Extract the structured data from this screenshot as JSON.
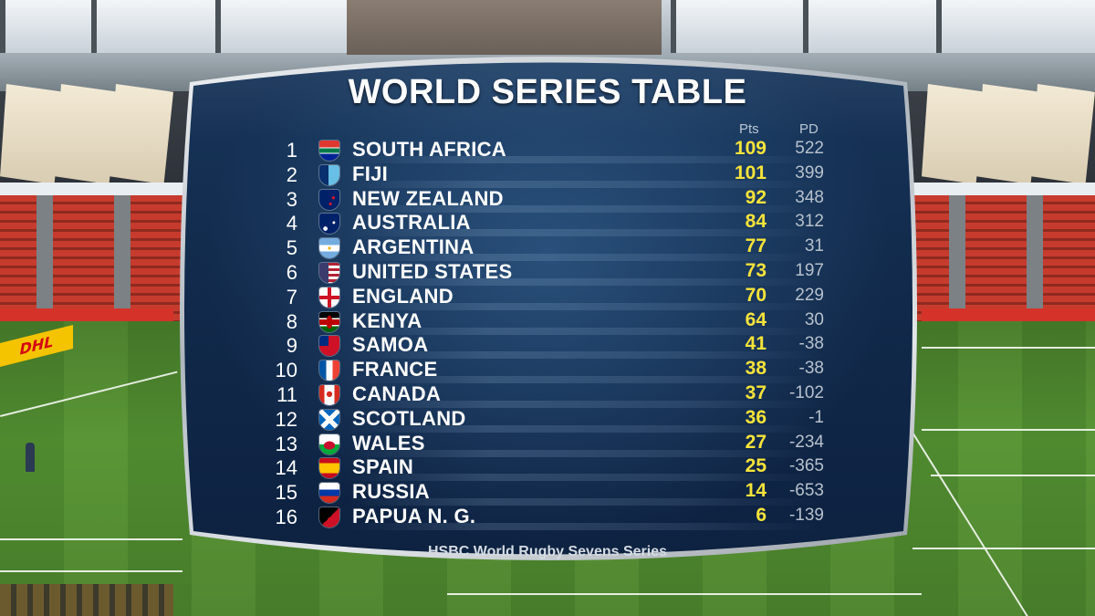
{
  "scoreboard": {
    "title": "WORLD SERIES TABLE",
    "columns": {
      "points": "Pts",
      "point_difference": "PD"
    },
    "rows": [
      {
        "rank": "1",
        "team": "SOUTH AFRICA",
        "pts": "109",
        "pd": "522",
        "flag": "south-africa-flag-icon"
      },
      {
        "rank": "2",
        "team": "FIJI",
        "pts": "101",
        "pd": "399",
        "flag": "fiji-flag-icon"
      },
      {
        "rank": "3",
        "team": "NEW ZEALAND",
        "pts": "92",
        "pd": "348",
        "flag": "new-zealand-flag-icon"
      },
      {
        "rank": "4",
        "team": "AUSTRALIA",
        "pts": "84",
        "pd": "312",
        "flag": "australia-flag-icon"
      },
      {
        "rank": "5",
        "team": "ARGENTINA",
        "pts": "77",
        "pd": "31",
        "flag": "argentina-flag-icon"
      },
      {
        "rank": "6",
        "team": "UNITED STATES",
        "pts": "73",
        "pd": "197",
        "flag": "usa-flag-icon"
      },
      {
        "rank": "7",
        "team": "ENGLAND",
        "pts": "70",
        "pd": "229",
        "flag": "england-flag-icon"
      },
      {
        "rank": "8",
        "team": "KENYA",
        "pts": "64",
        "pd": "30",
        "flag": "kenya-flag-icon"
      },
      {
        "rank": "9",
        "team": "SAMOA",
        "pts": "41",
        "pd": "-38",
        "flag": "samoa-flag-icon"
      },
      {
        "rank": "10",
        "team": "FRANCE",
        "pts": "38",
        "pd": "-38",
        "flag": "france-flag-icon"
      },
      {
        "rank": "11",
        "team": "CANADA",
        "pts": "37",
        "pd": "-102",
        "flag": "canada-flag-icon"
      },
      {
        "rank": "12",
        "team": "SCOTLAND",
        "pts": "36",
        "pd": "-1",
        "flag": "scotland-flag-icon"
      },
      {
        "rank": "13",
        "team": "WALES",
        "pts": "27",
        "pd": "-234",
        "flag": "wales-flag-icon"
      },
      {
        "rank": "14",
        "team": "SPAIN",
        "pts": "25",
        "pd": "-365",
        "flag": "spain-flag-icon"
      },
      {
        "rank": "15",
        "team": "RUSSIA",
        "pts": "14",
        "pd": "-653",
        "flag": "russia-flag-icon"
      },
      {
        "rank": "16",
        "team": "PAPUA N. G.",
        "pts": "6",
        "pd": "-139",
        "flag": "papua-new-guinea-flag-icon"
      }
    ],
    "footer": "HSBC World Rugby Sevens Series"
  },
  "background": {
    "sponsor_board": "DHL"
  },
  "colors": {
    "panel": "#11294a",
    "points": "#f6e33a",
    "pd": "#b7c1cc",
    "title": "#ffffff"
  }
}
